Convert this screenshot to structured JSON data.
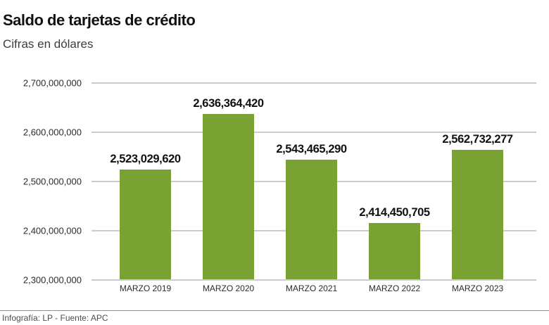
{
  "header": {
    "title": "Saldo de tarjetas de crédito",
    "subtitle": "Cifras en dólares"
  },
  "footer": {
    "credit": "Infografía: LP - Fuente: APC"
  },
  "chart_data": {
    "type": "bar",
    "title": "Saldo de tarjetas de crédito",
    "subtitle": "Cifras en dólares",
    "categories": [
      "MARZO 2019",
      "MARZO 2020",
      "MARZO 2021",
      "MARZO 2022",
      "MARZO 2023"
    ],
    "values": [
      2523029620,
      2636364420,
      2543465290,
      2414450705,
      2562732277
    ],
    "value_labels": [
      "2,523,029,620",
      "2,636,364,420",
      "2,543,465,290",
      "2,414,450,705",
      "2,562,732,277"
    ],
    "xlabel": "",
    "ylabel": "",
    "ylim": [
      2300000000,
      2700000000
    ],
    "ytick_values": [
      2300000000,
      2400000000,
      2500000000,
      2600000000,
      2700000000
    ],
    "ytick_labels": [
      "2,300,000,000",
      "2,400,000,000",
      "2,500,000,000",
      "2,600,000,000",
      "2,700,000,000"
    ],
    "grid": "horizontal",
    "legend": "none",
    "bar_color": "#79a233",
    "gridline_color": "#cccccc"
  }
}
